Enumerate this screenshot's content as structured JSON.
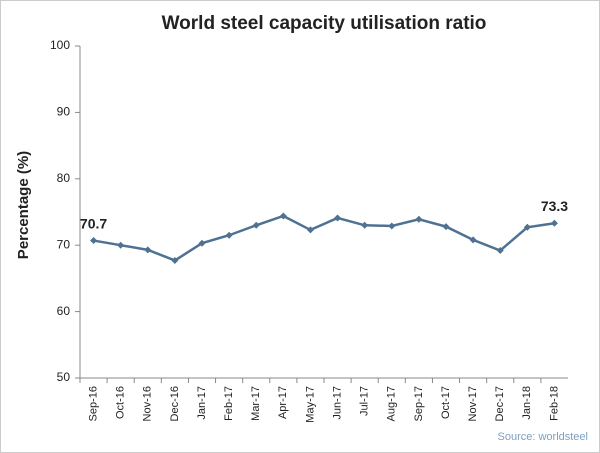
{
  "chart_data": {
    "type": "line",
    "title": "World steel capacity utilisation ratio",
    "y_label": "Percentage (%)",
    "source": "Source: worldsteel",
    "categories": [
      "Sep-16",
      "Oct-16",
      "Nov-16",
      "Dec-16",
      "Jan-17",
      "Feb-17",
      "Mar-17",
      "Apr-17",
      "May-17",
      "Jun-17",
      "Jul-17",
      "Aug-17",
      "Sep-17",
      "Oct-17",
      "Nov-17",
      "Dec-17",
      "Jan-18",
      "Feb-18"
    ],
    "values": [
      70.7,
      70.0,
      69.3,
      67.7,
      70.3,
      71.5,
      73.0,
      74.4,
      72.3,
      74.1,
      73.0,
      72.9,
      73.9,
      72.8,
      70.8,
      69.2,
      72.7,
      73.3
    ],
    "value_labels": [
      "70.7",
      null,
      null,
      null,
      null,
      null,
      null,
      null,
      null,
      null,
      null,
      null,
      null,
      null,
      null,
      null,
      null,
      "73.3"
    ],
    "color": "#4f7192",
    "ylim": [
      50,
      100
    ],
    "yticks": [
      50,
      60,
      70,
      80,
      90,
      100
    ],
    "grid": false
  }
}
